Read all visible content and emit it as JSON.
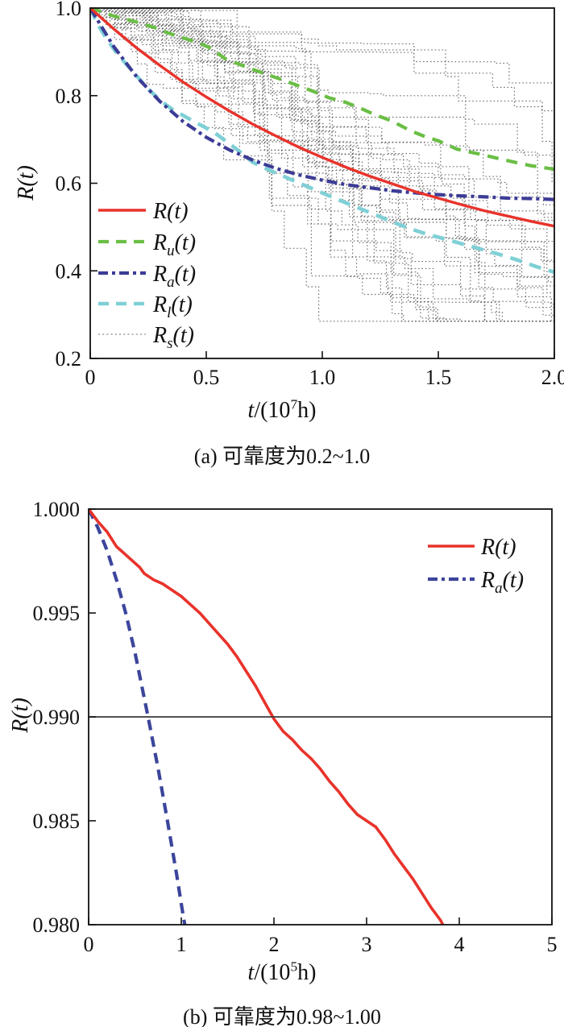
{
  "figures": [
    {
      "caption": "(a) 可靠度为0.2~1.0",
      "xlabel": {
        "var": "t",
        "pre": "/(10",
        "sup": "7",
        "post": "h)"
      },
      "ylabel": "R(t)"
    },
    {
      "caption": "(b) 可靠度为0.98~1.00",
      "xlabel": {
        "var": "t",
        "pre": "/(10",
        "sup": "5",
        "post": "h)"
      },
      "ylabel": "R(t)"
    }
  ],
  "chart_data": [
    {
      "id": "a",
      "type": "line",
      "title": "",
      "xlabel": "t/(10^7 h)",
      "ylabel": "R(t)",
      "xlim": [
        0,
        2
      ],
      "ylim": [
        0.2,
        1.0
      ],
      "xticks": [
        0,
        0.5,
        1.0,
        1.5,
        2.0
      ],
      "xtick_labels": [
        "0",
        "0.5",
        "1.0",
        "1.5",
        "2.0"
      ],
      "yticks": [
        1.0,
        0.8,
        0.6,
        0.4,
        0.2
      ],
      "ytick_labels": [
        "1.0",
        "0.8",
        "0.6",
        "0.4",
        "0.2"
      ],
      "grid": false,
      "legend_position": "inside-left-lower",
      "samples": {
        "name": "Rs(t)",
        "kind": "monte-carlo-step-paths",
        "count": 34,
        "seed": 20,
        "start": 1.0,
        "floor": 0.285,
        "end_range": [
          0.29,
          0.73
        ],
        "color": "#5f5f5f"
      },
      "series": [
        {
          "name": "Ru(t)",
          "color": "#6abe45",
          "dash": "14 10",
          "width": 4.2,
          "points": [
            [
              0,
              1.0
            ],
            [
              0.06,
              0.99
            ],
            [
              0.1,
              0.982
            ],
            [
              0.15,
              0.975
            ],
            [
              0.2,
              0.968
            ],
            [
              0.28,
              0.955
            ],
            [
              0.33,
              0.944
            ],
            [
              0.4,
              0.932
            ],
            [
              0.47,
              0.92
            ],
            [
              0.52,
              0.908
            ],
            [
              0.58,
              0.885
            ],
            [
              0.64,
              0.872
            ],
            [
              0.7,
              0.86
            ],
            [
              0.78,
              0.845
            ],
            [
              0.85,
              0.832
            ],
            [
              0.9,
              0.822
            ],
            [
              0.97,
              0.808
            ],
            [
              1.03,
              0.795
            ],
            [
              1.1,
              0.785
            ],
            [
              1.17,
              0.77
            ],
            [
              1.22,
              0.758
            ],
            [
              1.3,
              0.742
            ],
            [
              1.38,
              0.72
            ],
            [
              1.45,
              0.705
            ],
            [
              1.5,
              0.697
            ],
            [
              1.58,
              0.678
            ],
            [
              1.63,
              0.672
            ],
            [
              1.7,
              0.664
            ],
            [
              1.77,
              0.655
            ],
            [
              1.83,
              0.648
            ],
            [
              1.9,
              0.64
            ],
            [
              1.95,
              0.636
            ],
            [
              2.0,
              0.632
            ]
          ]
        },
        {
          "name": "Rl(t)",
          "color": "#7fd0d6",
          "dash": "15 10",
          "width": 4.6,
          "points": [
            [
              0,
              1.0
            ],
            [
              0.03,
              0.965
            ],
            [
              0.07,
              0.93
            ],
            [
              0.11,
              0.9
            ],
            [
              0.15,
              0.875
            ],
            [
              0.2,
              0.845
            ],
            [
              0.25,
              0.815
            ],
            [
              0.3,
              0.79
            ],
            [
              0.35,
              0.77
            ],
            [
              0.4,
              0.755
            ],
            [
              0.45,
              0.74
            ],
            [
              0.5,
              0.726
            ],
            [
              0.55,
              0.71
            ],
            [
              0.6,
              0.69
            ],
            [
              0.65,
              0.67
            ],
            [
              0.7,
              0.648
            ],
            [
              0.78,
              0.628
            ],
            [
              0.85,
              0.612
            ],
            [
              0.92,
              0.596
            ],
            [
              1.0,
              0.578
            ],
            [
              1.08,
              0.56
            ],
            [
              1.15,
              0.545
            ],
            [
              1.22,
              0.53
            ],
            [
              1.3,
              0.512
            ],
            [
              1.38,
              0.496
            ],
            [
              1.45,
              0.484
            ],
            [
              1.52,
              0.474
            ],
            [
              1.6,
              0.462
            ],
            [
              1.68,
              0.45
            ],
            [
              1.76,
              0.438
            ],
            [
              1.84,
              0.425
            ],
            [
              1.92,
              0.41
            ],
            [
              2.0,
              0.397
            ]
          ]
        },
        {
          "name": "Ra(t)",
          "color": "#3c3c96",
          "dash": "13 5 4 5",
          "width": 4.2,
          "points": [
            [
              0,
              1.0
            ],
            [
              0.1,
              0.913
            ],
            [
              0.2,
              0.843
            ],
            [
              0.3,
              0.787
            ],
            [
              0.4,
              0.741
            ],
            [
              0.5,
              0.705
            ],
            [
              0.6,
              0.676
            ],
            [
              0.7,
              0.653
            ],
            [
              0.8,
              0.634
            ],
            [
              0.9,
              0.619
            ],
            [
              1.0,
              0.607
            ],
            [
              1.1,
              0.597
            ],
            [
              1.2,
              0.59
            ],
            [
              1.3,
              0.583
            ],
            [
              1.4,
              0.578
            ],
            [
              1.5,
              0.574
            ],
            [
              1.6,
              0.571
            ],
            [
              1.7,
              0.569
            ],
            [
              1.8,
              0.566
            ],
            [
              1.9,
              0.565
            ],
            [
              2.0,
              0.563
            ]
          ]
        },
        {
          "name": "R(t)",
          "color": "#e8332b",
          "dash": "",
          "width": 3.4,
          "points": [
            [
              0,
              1.0
            ],
            [
              0.1,
              0.953
            ],
            [
              0.2,
              0.909
            ],
            [
              0.3,
              0.869
            ],
            [
              0.4,
              0.831
            ],
            [
              0.5,
              0.797
            ],
            [
              0.6,
              0.765
            ],
            [
              0.7,
              0.735
            ],
            [
              0.8,
              0.708
            ],
            [
              0.9,
              0.682
            ],
            [
              1.0,
              0.659
            ],
            [
              1.1,
              0.637
            ],
            [
              1.2,
              0.617
            ],
            [
              1.3,
              0.599
            ],
            [
              1.4,
              0.581
            ],
            [
              1.5,
              0.566
            ],
            [
              1.6,
              0.551
            ],
            [
              1.7,
              0.537
            ],
            [
              1.8,
              0.525
            ],
            [
              1.9,
              0.513
            ],
            [
              2.0,
              0.502
            ]
          ]
        }
      ],
      "legend": {
        "items": [
          {
            "main": "R",
            "sub": "",
            "rest": "(t)",
            "color": "#e8332b",
            "dash": "",
            "width": 3.4
          },
          {
            "main": "R",
            "sub": "u",
            "rest": "(t)",
            "color": "#6abe45",
            "dash": "13 9",
            "width": 4.2
          },
          {
            "main": "R",
            "sub": "a",
            "rest": "(t)",
            "color": "#3c3c96",
            "dash": "12 5 4 5",
            "width": 4.2
          },
          {
            "main": "R",
            "sub": "l",
            "rest": "(t)",
            "color": "#7fd0d6",
            "dash": "13 9",
            "width": 4.6
          },
          {
            "main": "R",
            "sub": "s",
            "rest": "(t)",
            "color": "#8a8a8a",
            "dash": "2 3.2",
            "width": 1.2
          }
        ]
      }
    },
    {
      "id": "b",
      "type": "line",
      "title": "",
      "xlabel": "t/(10^5 h)",
      "ylabel": "R(t)",
      "xlim": [
        0,
        5
      ],
      "ylim": [
        0.98,
        1.0
      ],
      "xticks": [
        0,
        1,
        2,
        3,
        4,
        5
      ],
      "xtick_labels": [
        "0",
        "1",
        "2",
        "3",
        "4",
        "5"
      ],
      "yticks": [
        1.0,
        0.995,
        0.99,
        0.985,
        0.98
      ],
      "ytick_labels": [
        "1.000",
        "0.995",
        "0.990",
        "0.985",
        "0.980"
      ],
      "grid": false,
      "ref_line_y": 0.99,
      "legend_position": "inside-top-right",
      "series": [
        {
          "name": "Ra(t)",
          "color": "#3c459b",
          "dash": "13 8",
          "width": 4.2,
          "points": [
            [
              0,
              1.0
            ],
            [
              0.1,
              0.9991
            ],
            [
              0.2,
              0.998
            ],
            [
              0.3,
              0.9966
            ],
            [
              0.4,
              0.995
            ],
            [
              0.5,
              0.9931
            ],
            [
              0.55,
              0.992
            ],
            [
              0.65,
              0.9898
            ],
            [
              0.75,
              0.9875
            ],
            [
              0.85,
              0.985
            ],
            [
              0.95,
              0.9824
            ],
            [
              1.0,
              0.981
            ],
            [
              1.06,
              0.9794
            ]
          ]
        },
        {
          "name": "R(t)",
          "color": "#e8332b",
          "dash": "",
          "width": 3.6,
          "points": [
            [
              0,
              1.0
            ],
            [
              0.1,
              0.9994
            ],
            [
              0.2,
              0.9989
            ],
            [
              0.3,
              0.9982
            ],
            [
              0.35,
              0.998
            ],
            [
              0.45,
              0.9976
            ],
            [
              0.55,
              0.9972
            ],
            [
              0.6,
              0.9969
            ],
            [
              0.7,
              0.9966
            ],
            [
              0.8,
              0.9964
            ],
            [
              0.9,
              0.9961
            ],
            [
              1.0,
              0.9958
            ],
            [
              1.1,
              0.9954
            ],
            [
              1.2,
              0.995
            ],
            [
              1.3,
              0.9945
            ],
            [
              1.4,
              0.994
            ],
            [
              1.5,
              0.9935
            ],
            [
              1.6,
              0.9929
            ],
            [
              1.7,
              0.9922
            ],
            [
              1.8,
              0.9915
            ],
            [
              1.9,
              0.9907
            ],
            [
              2.0,
              0.9899
            ],
            [
              2.1,
              0.9893
            ],
            [
              2.2,
              0.9889
            ],
            [
              2.3,
              0.9884
            ],
            [
              2.4,
              0.988
            ],
            [
              2.5,
              0.9875
            ],
            [
              2.6,
              0.9869
            ],
            [
              2.7,
              0.9864
            ],
            [
              2.8,
              0.9858
            ],
            [
              2.9,
              0.9853
            ],
            [
              3.0,
              0.985
            ],
            [
              3.1,
              0.9847
            ],
            [
              3.2,
              0.9841
            ],
            [
              3.3,
              0.9834
            ],
            [
              3.4,
              0.9828
            ],
            [
              3.5,
              0.9822
            ],
            [
              3.6,
              0.9815
            ],
            [
              3.7,
              0.9808
            ],
            [
              3.8,
              0.9802
            ],
            [
              3.9,
              0.9793
            ],
            [
              4.0,
              0.9786
            ]
          ]
        }
      ],
      "legend": {
        "items": [
          {
            "main": "R",
            "sub": "",
            "rest": "(t)",
            "color": "#e8332b",
            "dash": "",
            "width": 3.6
          },
          {
            "main": "R",
            "sub": "a",
            "rest": "(t)",
            "color": "#3c459b",
            "dash": "12 5 4 5",
            "width": 4.2
          }
        ]
      }
    }
  ]
}
